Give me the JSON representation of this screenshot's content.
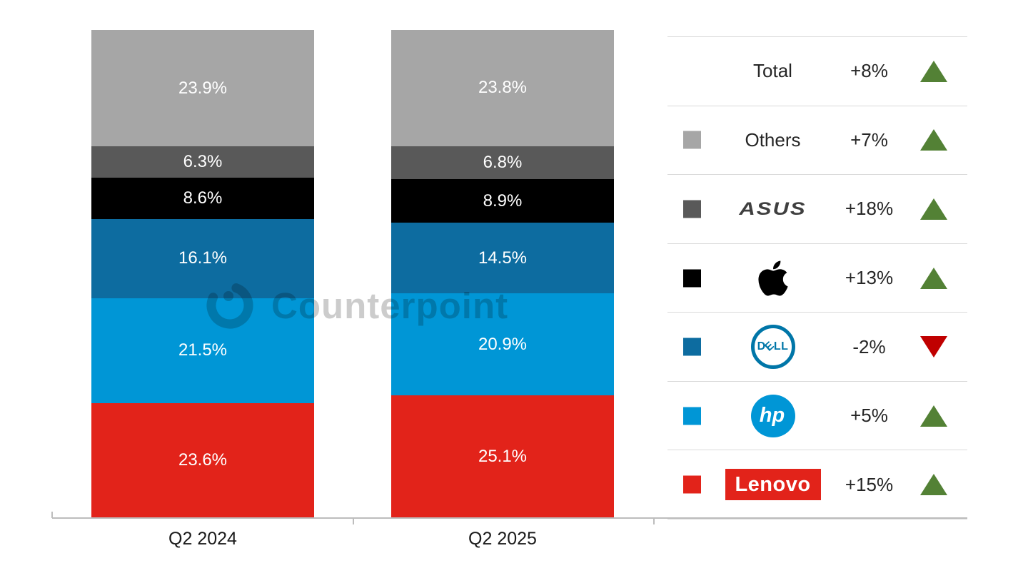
{
  "watermark": {
    "text": "Counterpoint"
  },
  "chart_data": {
    "type": "bar",
    "stacked": true,
    "title": "",
    "categories": [
      "Q2 2024",
      "Q2 2025"
    ],
    "value_unit": "%",
    "ylim": [
      0,
      100
    ],
    "legend_position": "right",
    "series": [
      {
        "name": "Lenovo",
        "color": "#e2231a",
        "values": [
          23.6,
          25.1
        ],
        "labels": [
          "23.6%",
          "25.1%"
        ]
      },
      {
        "name": "HP",
        "color": "#0096d6",
        "values": [
          21.5,
          20.9
        ],
        "labels": [
          "21.5%",
          "20.9%"
        ]
      },
      {
        "name": "Dell",
        "color": "#0d6ca0",
        "values": [
          16.1,
          14.5
        ],
        "labels": [
          "16.1%",
          "14.5%"
        ]
      },
      {
        "name": "Apple",
        "color": "#000000",
        "values": [
          8.6,
          8.9
        ],
        "labels": [
          "8.6%",
          "8.9%"
        ]
      },
      {
        "name": "ASUS",
        "color": "#595959",
        "values": [
          6.3,
          6.8
        ],
        "labels": [
          "6.3%",
          "6.8%"
        ]
      },
      {
        "name": "Others",
        "color": "#a6a6a6",
        "values": [
          23.9,
          23.8
        ],
        "labels": [
          "23.9%",
          "23.8%"
        ]
      }
    ]
  },
  "legend": {
    "up_color": "#538135",
    "down_color": "#c00000",
    "rows": [
      {
        "label": "Total",
        "change": "+8%",
        "trend": "up",
        "swatch": null,
        "logo": "text"
      },
      {
        "label": "Others",
        "change": "+7%",
        "trend": "up",
        "swatch": "#a6a6a6",
        "logo": "text"
      },
      {
        "label": "ASUS",
        "change": "+18%",
        "trend": "up",
        "swatch": "#595959",
        "logo": "asus",
        "logo_text": "ASUS"
      },
      {
        "label": "Apple",
        "change": "+13%",
        "trend": "up",
        "swatch": "#000000",
        "logo": "apple"
      },
      {
        "label": "Dell",
        "change": "-2%",
        "trend": "down",
        "swatch": "#0d6ca0",
        "logo": "dell",
        "logo_text": "DELL"
      },
      {
        "label": "HP",
        "change": "+5%",
        "trend": "up",
        "swatch": "#0096d6",
        "logo": "hp",
        "logo_text": "hp"
      },
      {
        "label": "Lenovo",
        "change": "+15%",
        "trend": "up",
        "swatch": "#e2231a",
        "logo": "lenovo",
        "logo_text": "Lenovo"
      }
    ]
  }
}
